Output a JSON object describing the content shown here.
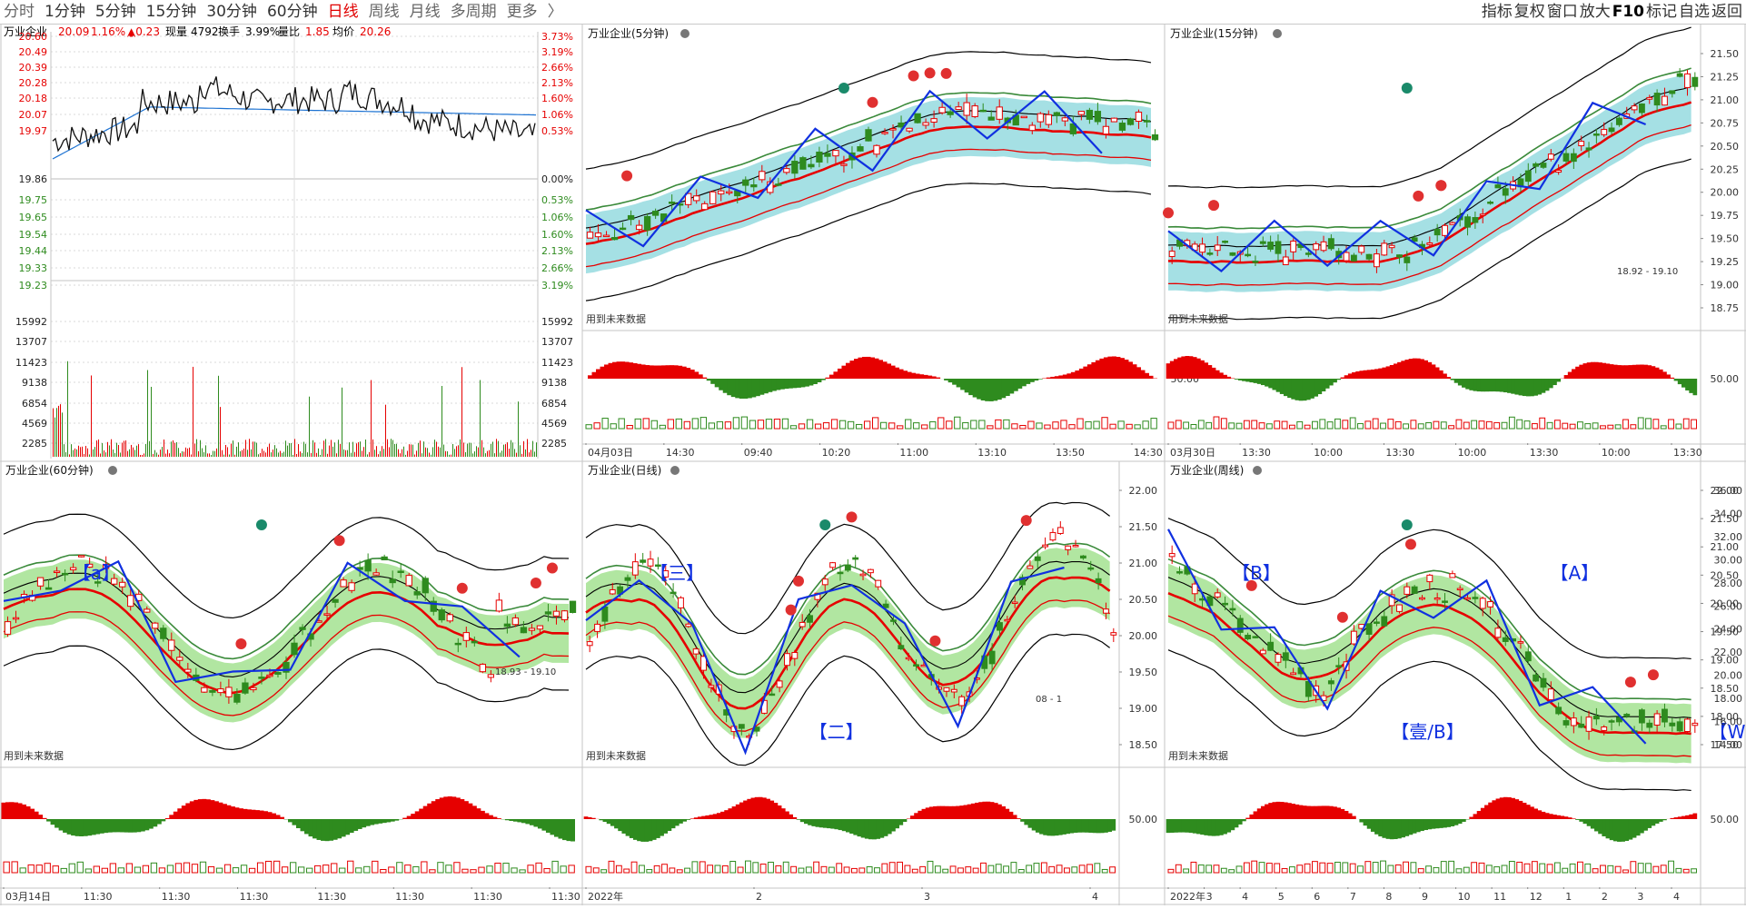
{
  "toolbar": {
    "tabs": [
      {
        "label": "分时",
        "cls": "dim"
      },
      {
        "label": "1分钟",
        "cls": ""
      },
      {
        "label": "5分钟",
        "cls": ""
      },
      {
        "label": "15分钟",
        "cls": ""
      },
      {
        "label": "30分钟",
        "cls": ""
      },
      {
        "label": "60分钟",
        "cls": ""
      },
      {
        "label": "日线",
        "cls": "day"
      },
      {
        "label": "周线",
        "cls": "dim"
      },
      {
        "label": "月线",
        "cls": "dim"
      },
      {
        "label": "多周期",
        "cls": "dim"
      },
      {
        "label": "更多",
        "cls": "dim"
      },
      {
        "label": "〉",
        "cls": "dim"
      }
    ],
    "tools": [
      "指标",
      "复权",
      "窗口",
      "放大",
      "F10",
      "标记",
      "自选",
      "返回"
    ]
  },
  "colors": {
    "up": "#e60000",
    "down": "#2e8b1e",
    "blue": "#1030e0",
    "cyan": "#8fd8dd",
    "gray": "#9a9a9a",
    "avg": "#1e73d2",
    "border": "#c6c6c6"
  },
  "intraday": {
    "name": "万业企业",
    "price": "20.09",
    "pct": "1.16%",
    "chg": "▲0.23",
    "vol_label": "现量",
    "vol": "4792",
    "turn_label": "换手",
    "turn": "3.99%",
    "ratio_label": "量比",
    "ratio": "1.85",
    "avg_label": "均价",
    "avg": "20.26",
    "price_ticks_up": [
      "20.60",
      "20.49",
      "20.39",
      "20.28",
      "20.18",
      "20.07",
      "19.97"
    ],
    "base": "19.86",
    "price_ticks_down": [
      "19.75",
      "19.65",
      "19.54",
      "19.44",
      "19.33",
      "19.23"
    ],
    "pct_ticks_up": [
      "3.73%",
      "3.19%",
      "2.66%",
      "2.13%",
      "1.60%",
      "1.06%",
      "0.53%"
    ],
    "pct_base": "0.00%",
    "pct_ticks_down": [
      "0.53%",
      "1.06%",
      "1.60%",
      "2.13%",
      "2.66%",
      "3.19%"
    ],
    "vol_ticks": [
      "15992",
      "13707",
      "11423",
      "9138",
      "6854",
      "4569",
      "2285"
    ]
  },
  "panels": [
    {
      "title": "万业企业(5分钟)",
      "future": "用到未来数据",
      "xlabels": [
        "04月03日",
        "14:30",
        "09:40",
        "10:20",
        "11:00",
        "13:10",
        "13:50",
        "14:30"
      ],
      "yticks": [],
      "mid": "50.00",
      "annotations": []
    },
    {
      "title": "万业企业(15分钟)",
      "future": "用到未来数据",
      "xlabels": [
        "03月30日",
        "13:30",
        "10:00",
        "13:30",
        "10:00",
        "13:30",
        "10:00",
        "13:30"
      ],
      "yticks": [
        "21.50",
        "21.25",
        "21.00",
        "20.75",
        "20.50",
        "20.25",
        "20.00",
        "19.75",
        "19.50",
        "19.25",
        "19.00",
        "18.75"
      ],
      "ylabels": [
        "21.50",
        "21.25",
        "21.00",
        "20.75",
        "20.50",
        "20.25",
        "20.00",
        "19.75",
        "19.50",
        "19.25",
        "19.00"
      ],
      "mid": "50.00",
      "annotations": [
        "18.92 - 19.10"
      ]
    },
    {
      "title": "万业企业(60分钟)",
      "future": "用到未来数据",
      "xlabels": [
        "03月14日",
        "11:30",
        "11:30",
        "11:30",
        "11:30",
        "11:30",
        "11:30",
        "11:30"
      ],
      "yticks": [],
      "mid": "",
      "annotations": [
        "【a】",
        "18.93 - 19.10"
      ]
    },
    {
      "title": "万业企业(日线)",
      "future": "用到未来数据",
      "xlabels": [
        "2022年",
        "2",
        "3",
        "4"
      ],
      "yticks": [
        "22.00",
        "21.50",
        "21.00",
        "20.50",
        "20.00",
        "19.50",
        "19.00",
        "18.50"
      ],
      "mid": "50.00",
      "annotations": [
        "【三】",
        "【二】",
        "08 - 1"
      ]
    },
    {
      "title": "万业企业(周线)",
      "future": "用到未来数据",
      "xlabels": [
        "2022年",
        "3",
        "4",
        "5",
        "6",
        "7",
        "8",
        "9",
        "10",
        "11",
        "12",
        "1",
        "2",
        "3",
        "4"
      ],
      "yticks": [
        "22.00",
        "21.50",
        "21.00",
        "20.50",
        "20.00",
        "19.50",
        "19.00",
        "18.50",
        "18.00",
        "17.50"
      ],
      "rticks": [
        "36.00",
        "34.00",
        "32.00",
        "30.00",
        "28.00",
        "26.00",
        "24.00",
        "22.00",
        "20.00",
        "18.00",
        "16.00",
        "14.00"
      ],
      "mid": "50.00",
      "annotations": [
        "【B】",
        "【壹/B】",
        "【A】",
        "【W】"
      ]
    }
  ]
}
